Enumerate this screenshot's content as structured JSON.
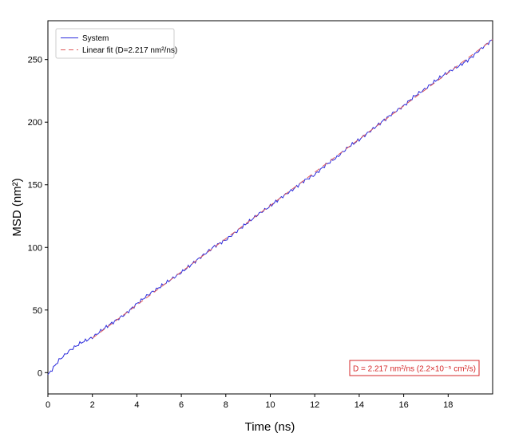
{
  "chart_data": {
    "type": "line",
    "title": "",
    "xlabel": "Time (ns)",
    "ylabel": "MSD (nm²)",
    "xlim": [
      0,
      20
    ],
    "ylim": [
      -17,
      281
    ],
    "xticks": [
      0,
      2,
      4,
      6,
      8,
      10,
      12,
      14,
      16,
      18
    ],
    "yticks": [
      0,
      50,
      100,
      150,
      200,
      250
    ],
    "grid": false,
    "legend_position": "top-left",
    "series": [
      {
        "name": "System",
        "style": "solid",
        "color": "#2b2bdc",
        "x": [
          0,
          0.5,
          1,
          1.5,
          2,
          2.5,
          3,
          3.5,
          4,
          4.5,
          5,
          5.5,
          6,
          6.5,
          7,
          7.5,
          8,
          8.5,
          9,
          9.5,
          10,
          10.5,
          11,
          11.5,
          12,
          12.5,
          13,
          13.5,
          14,
          14.5,
          15,
          15.5,
          16,
          16.5,
          17,
          17.5,
          18,
          18.5,
          19,
          19.5,
          20
        ],
        "y": [
          -2,
          10,
          18,
          24,
          28,
          35,
          41,
          47,
          55,
          62,
          68,
          74,
          80,
          87,
          94,
          101,
          106,
          113,
          120,
          127,
          133,
          140,
          146,
          153,
          158,
          166,
          172,
          180,
          186,
          193,
          200,
          207,
          213,
          221,
          227,
          234,
          240,
          245,
          251,
          259,
          266
        ]
      },
      {
        "name": "Linear fit (D=2.217 nm²/ns)",
        "style": "dashed",
        "color": "#e05a5a",
        "x": [
          2,
          20
        ],
        "y": [
          27.5,
          266
        ]
      }
    ],
    "annotation": "D = 2.217 nm²/ns (2.2×10⁻⁵ cm²/s)"
  },
  "colors": {
    "system": "#2b2bdc",
    "fit": "#e05a5a",
    "annotation_text": "#d62728",
    "annotation_border": "#d62728"
  }
}
